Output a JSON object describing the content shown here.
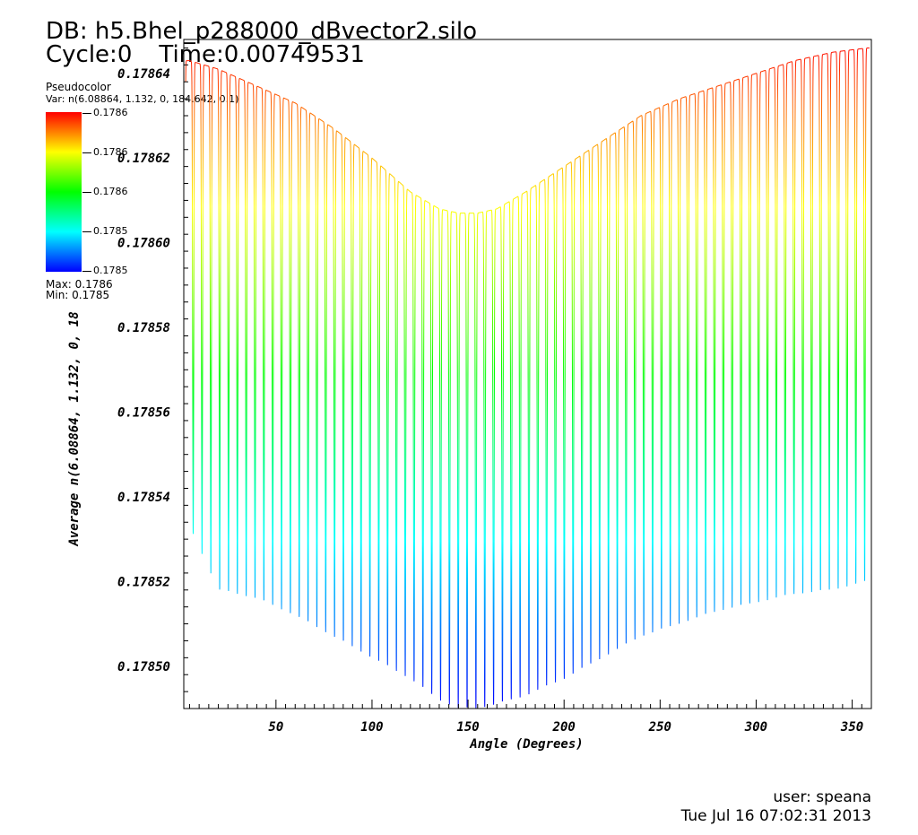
{
  "header": {
    "db_label": "DB: h5.Bhel_p288000_dBvector2.silo",
    "cycle_label": "Cycle:0",
    "time_label": "Time:0.00749531"
  },
  "legend": {
    "title": "Pseudocolor",
    "var": "Var: n(6.08864, 1.132, 0, 184.642, 0.1)",
    "tick_labels": [
      "0.1786",
      "0.1786",
      "0.1786",
      "0.1785",
      "0.1785"
    ],
    "max_label": "Max:  0.1786",
    "min_label": "Min:  0.1785",
    "colormap": [
      "#ff0000",
      "#ffff00",
      "#00ff00",
      "#00ffff",
      "#0000ff"
    ]
  },
  "footer": {
    "user": "user: speana",
    "date": "Tue Jul 16 07:02:31 2013"
  },
  "chart_data": {
    "type": "line",
    "xlabel": "Angle (Degrees)",
    "ylabel": "Average n(6.08864, 1.132, 0, 18",
    "xlim": [
      2,
      360
    ],
    "ylim": [
      0.17849,
      0.178648
    ],
    "x_ticks": [
      50,
      100,
      150,
      200,
      250,
      300,
      350
    ],
    "x_tick_labels": [
      "50",
      "100",
      "150",
      "200",
      "250",
      "300",
      "350"
    ],
    "y_ticks": [
      0.1785,
      0.17852,
      0.17854,
      0.17856,
      0.17858,
      0.1786,
      0.17862,
      0.17864
    ],
    "y_tick_labels": [
      "0.17850",
      "0.17852",
      "0.17854",
      "0.17856",
      "0.17858",
      "0.17860",
      "0.17862",
      "0.17864"
    ],
    "envelope_angles": [
      5,
      20,
      40,
      60,
      80,
      100,
      120,
      135,
      145,
      155,
      165,
      180,
      200,
      220,
      240,
      260,
      280,
      300,
      320,
      340,
      358
    ],
    "envelope_max": [
      0.178643,
      0.178641,
      0.178637,
      0.178633,
      0.178627,
      0.17862,
      0.178612,
      0.178608,
      0.178607,
      0.178607,
      0.178608,
      0.178612,
      0.178618,
      0.178624,
      0.17863,
      0.178634,
      0.178637,
      0.17864,
      0.178643,
      0.178645,
      0.178646
    ],
    "envelope_min": [
      0.178533,
      0.178518,
      0.178516,
      0.178512,
      0.178507,
      0.178502,
      0.178497,
      0.178492,
      0.17849,
      0.17849,
      0.178491,
      0.178493,
      0.178497,
      0.178502,
      0.178507,
      0.17851,
      0.178513,
      0.178515,
      0.178517,
      0.178518,
      0.17852
    ],
    "oscillation_period_deg": 4.6,
    "grid": false
  }
}
